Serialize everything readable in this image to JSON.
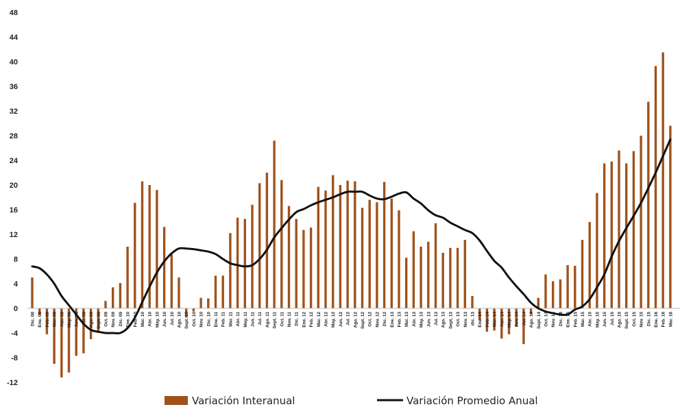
{
  "chart_data": {
    "type": "bar",
    "ylim": [
      -12,
      48
    ],
    "yticks": [
      -12,
      -8,
      -4,
      0,
      4,
      8,
      12,
      16,
      20,
      24,
      28,
      32,
      36,
      40,
      44,
      48
    ],
    "grid": false,
    "legend_placement": "bottom",
    "categories": [
      "Dic. 08",
      "Ene. 09",
      "Feb. 09",
      "Mar. 09",
      "Abr. 09",
      "May. 09",
      "Jun. 09",
      "Jul. 09",
      "Ago. 09",
      "Sept. 09",
      "Oct. 09",
      "Nov. 09",
      "Dic. 09",
      "Ene. 10",
      "Feb. 10",
      "Mar. 10",
      "Abr. 10",
      "May. 10",
      "Jun. 10",
      "Jul. 10",
      "Ago. 10",
      "Sept. 10",
      "Oct. 10",
      "Nov. 10",
      "Dic. 10",
      "Ene. 11",
      "Feb. 11",
      "Mar. 11",
      "Abr. 11",
      "May. 11",
      "Jun. 11",
      "Jul. 11",
      "Ago. 11",
      "Sept. 11",
      "Oct. 11",
      "Nov. 11",
      "Dic. 11",
      "Ene. 12",
      "Feb. 12",
      "Mar. 12",
      "Abr. 12",
      "May. 12",
      "Jun. 12",
      "Jul. 12",
      "Ago. 12",
      "Sept. 12",
      "Oct. 12",
      "Nov. 12",
      "Dic. 12",
      "Ene. 13",
      "Feb. 13",
      "Mar. 13",
      "Abr. 13",
      "May. 13",
      "Jun. 13",
      "Jul. 13",
      "Ago. 13",
      "Sept. 13",
      "Oct. 13",
      "Nov. 13",
      "dic. 13",
      "Ene. 14",
      "Feb. 14",
      "Mar. 14",
      "Abr. 14",
      "May. 14",
      "Jun. 14",
      "Jul. 14",
      "Ago. 14",
      "Sept. 14",
      "Oct. 14",
      "Nov. 14",
      "Dic. 14",
      "Ene. 15",
      "Feb. 15",
      "Mar. 15",
      "Abr. 15",
      "May. 15",
      "Jun. 15",
      "Jul. 15",
      "Ago. 15",
      "Sept. 15",
      "Oct. 15",
      "Nov. 15",
      "Dic. 15",
      "Ene. 16",
      "Feb. 16",
      "Mar. 16"
    ],
    "series": [
      {
        "name": "Variación Interanual",
        "type": "bar",
        "color": "#A0521A",
        "values": [
          5.0,
          -1.0,
          -4.2,
          -9.0,
          -11.2,
          -10.4,
          -7.7,
          -7.3,
          -5.0,
          -4.0,
          1.2,
          3.4,
          4.1,
          10.0,
          17.1,
          20.6,
          20.0,
          19.2,
          13.2,
          8.7,
          5.0,
          -1.5,
          -0.5,
          1.7,
          1.6,
          5.3,
          5.3,
          12.2,
          14.7,
          14.5,
          16.8,
          20.3,
          22.0,
          27.2,
          20.8,
          16.6,
          14.5,
          12.7,
          13.1,
          19.7,
          19.1,
          21.6,
          20.0,
          20.7,
          20.6,
          16.3,
          17.6,
          17.2,
          20.5,
          17.8,
          15.9,
          8.2,
          12.5,
          10.0,
          10.8,
          13.8,
          9.0,
          9.8,
          9.8,
          11.1,
          2.0,
          -1.9,
          -3.8,
          -3.6,
          -4.9,
          -4.2,
          -3.0,
          -5.8,
          -1.0,
          1.7,
          5.5,
          4.4,
          4.7,
          7.0,
          6.9,
          11.1,
          14.0,
          18.7,
          23.5,
          23.8,
          25.6,
          23.5,
          25.5,
          28.0,
          33.5,
          39.3,
          41.5,
          29.6
        ]
      },
      {
        "name": "Variación Promedio Anual",
        "type": "line",
        "color": "#111111",
        "values": [
          6.8,
          6.5,
          5.5,
          4.0,
          2.0,
          0.5,
          -1.0,
          -2.5,
          -3.5,
          -3.8,
          -4.0,
          -4.0,
          -4.0,
          -3.2,
          -1.5,
          1.0,
          3.5,
          5.8,
          7.6,
          8.9,
          9.7,
          9.7,
          9.6,
          9.4,
          9.2,
          8.8,
          8.0,
          7.3,
          7.0,
          6.8,
          7.0,
          8.0,
          9.5,
          11.5,
          13.0,
          14.4,
          15.6,
          16.1,
          16.7,
          17.2,
          17.6,
          18.0,
          18.5,
          18.9,
          18.9,
          18.9,
          18.3,
          17.8,
          17.7,
          18.1,
          18.6,
          18.8,
          17.8,
          17.0,
          15.9,
          15.1,
          14.7,
          13.9,
          13.3,
          12.7,
          12.2,
          11.0,
          9.3,
          7.7,
          6.6,
          5.0,
          3.6,
          2.3,
          0.9,
          0.0,
          -0.5,
          -0.8,
          -1.0,
          -1.0,
          -0.2,
          0.3,
          1.5,
          3.4,
          5.5,
          8.4,
          10.9,
          13.0,
          15.0,
          17.1,
          19.5,
          22.0,
          24.7,
          27.4
        ]
      }
    ]
  }
}
